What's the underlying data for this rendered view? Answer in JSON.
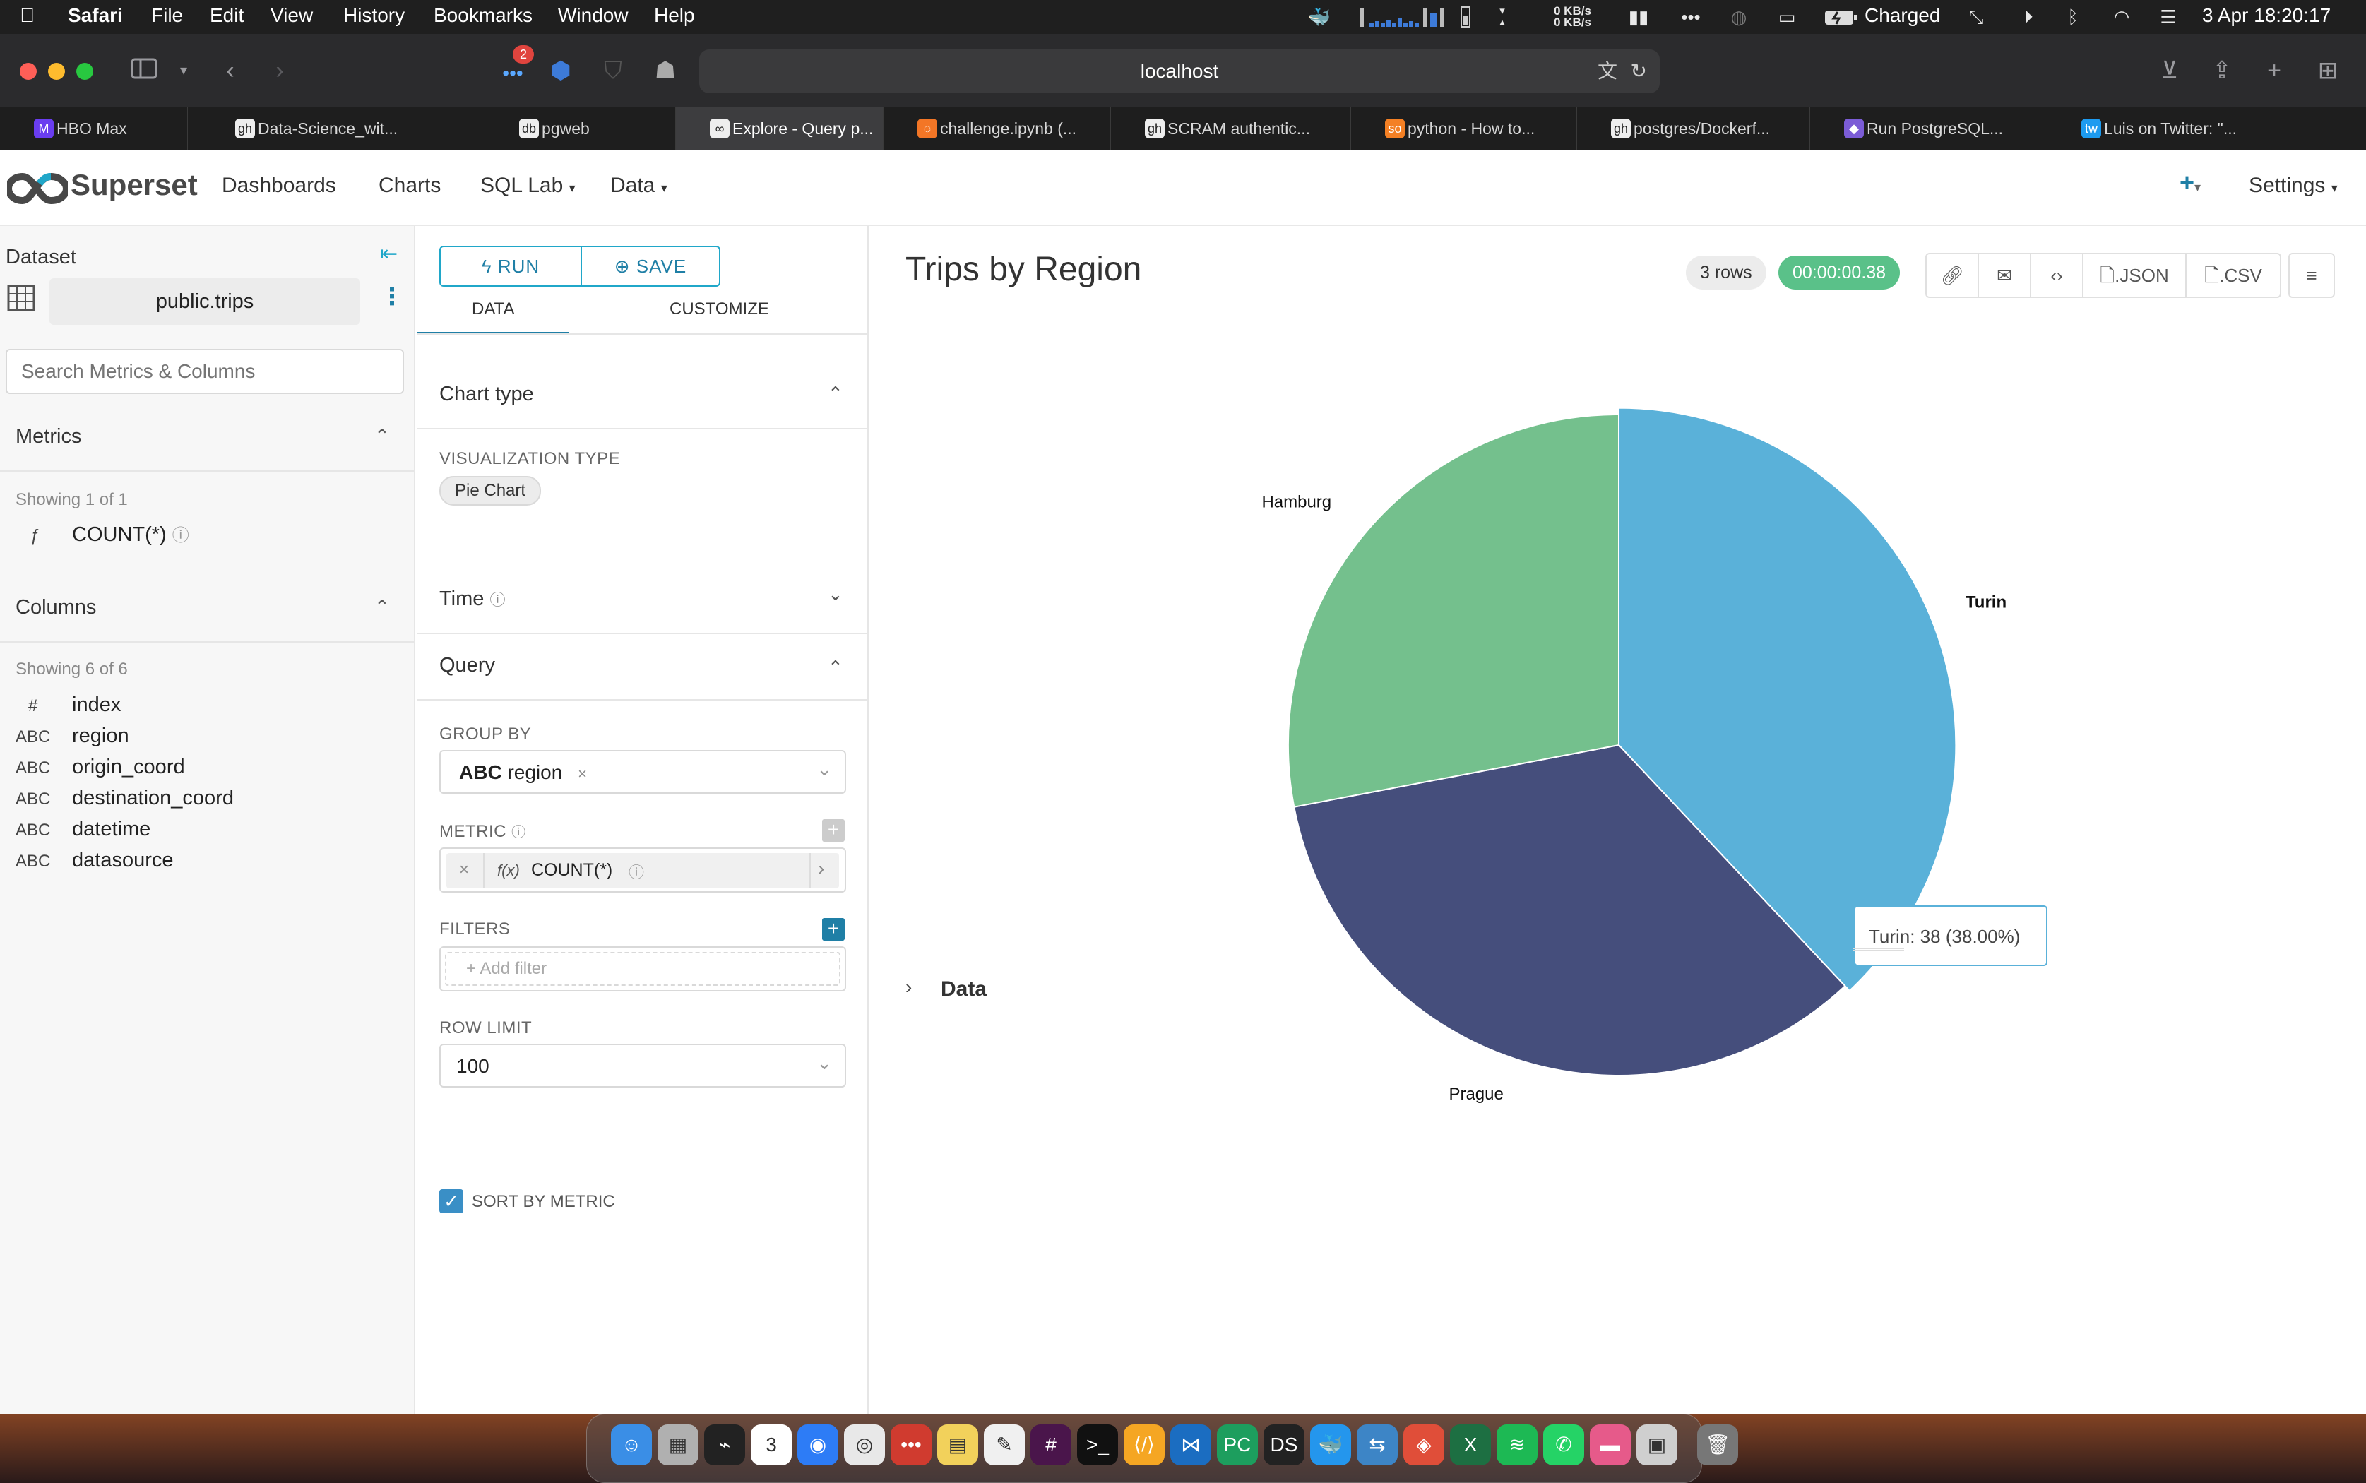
{
  "menubar": {
    "app": "Safari",
    "items": [
      "File",
      "Edit",
      "View",
      "History",
      "Bookmarks",
      "Window",
      "Help"
    ],
    "net_up": "0 KB/s",
    "net_down": "0 KB/s",
    "battery_status": "Charged",
    "datetime": "3 Apr  18:20:17",
    "icons": [
      "apple-icon",
      "docker-icon",
      "cpu-graph-icon",
      "memory-icon",
      "disk-icon",
      "network-icon",
      "window-icon",
      "more-icon",
      "globe-icon",
      "notes-icon",
      "battery-icon",
      "shrink-icon",
      "play-icon",
      "bluetooth-icon",
      "wifi-icon",
      "control-center-icon"
    ]
  },
  "toolbar": {
    "url": "localhost",
    "badge_count": "2"
  },
  "tabs": [
    {
      "label": "HBO Max",
      "icon": "M"
    },
    {
      "label": "Data-Science_wit...",
      "icon": "gh"
    },
    {
      "label": "pgweb",
      "icon": "db"
    },
    {
      "label": "Explore - Query p...",
      "icon": "∞",
      "active": true
    },
    {
      "label": "challenge.ipynb (...",
      "icon": "◌"
    },
    {
      "label": "SCRAM authentic...",
      "icon": "gh"
    },
    {
      "label": "python - How to...",
      "icon": "so"
    },
    {
      "label": "postgres/Dockerf...",
      "icon": "gh"
    },
    {
      "label": "Run PostgreSQL...",
      "icon": "◆"
    },
    {
      "label": "Luis on Twitter: \"...",
      "icon": "tw"
    }
  ],
  "superset": {
    "brand": "Superset",
    "nav": [
      "Dashboards",
      "Charts",
      "SQL Lab",
      "Data"
    ],
    "settings": "Settings"
  },
  "datasource": {
    "title": "Dataset",
    "name": "public.trips",
    "search_placeholder": "Search Metrics & Columns",
    "metrics_title": "Metrics",
    "metrics_showing": "Showing 1 of 1",
    "metrics": [
      {
        "type": "ƒ",
        "name": "COUNT(*)"
      }
    ],
    "columns_title": "Columns",
    "columns_showing": "Showing 6 of 6",
    "columns": [
      {
        "type": "#",
        "name": "index"
      },
      {
        "type": "ABC",
        "name": "region"
      },
      {
        "type": "ABC",
        "name": "origin_coord"
      },
      {
        "type": "ABC",
        "name": "destination_coord"
      },
      {
        "type": "ABC",
        "name": "datetime"
      },
      {
        "type": "ABC",
        "name": "datasource"
      }
    ]
  },
  "control_panel": {
    "run": "RUN",
    "save": "SAVE",
    "tab_data": "DATA",
    "tab_customize": "CUSTOMIZE",
    "chart_type_title": "Chart type",
    "viz_type_label": "VISUALIZATION TYPE",
    "viz_type_value": "Pie Chart",
    "time_title": "Time",
    "query_title": "Query",
    "group_by_label": "GROUP BY",
    "group_by_type": "ABC",
    "group_by_value": "region",
    "metric_label": "METRIC",
    "metric_fx": "f(x)",
    "metric_value": "COUNT(*)",
    "filters_label": "FILTERS",
    "add_filter": "Add filter",
    "row_limit_label": "ROW LIMIT",
    "row_limit_value": "100",
    "sort_by_metric": "SORT BY METRIC",
    "sort_by_metric_checked": true
  },
  "chart_header": {
    "title": "Trips by Region",
    "rows": "3 rows",
    "duration": "00:00:00.38",
    "json_btn": ".JSON",
    "csv_btn": ".CSV",
    "data_section": "Data"
  },
  "chart_data": {
    "type": "pie",
    "title": "Trips by Region",
    "categories": [
      "Turin",
      "Prague",
      "Hamburg"
    ],
    "values": [
      38,
      34,
      28
    ],
    "colors": [
      "#5ab1d9",
      "#454e7c",
      "#74c08d"
    ],
    "tooltip": "Turin: 38 (38.00%)"
  },
  "dock": [
    "Finder",
    "Launchpad",
    "Activity Monitor",
    "Calendar",
    "Safari",
    "Chrome",
    "Mela",
    "Notes",
    "Freeform",
    "Slack",
    "Terminal",
    "Sublime",
    "VS Code",
    "PyCharm",
    "DataSpell",
    "Docker",
    "Migration",
    "Git",
    "Excel",
    "Spotify",
    "WhatsApp",
    "Screen",
    "Preview",
    "Trash"
  ],
  "dock_calendar_day": "3"
}
